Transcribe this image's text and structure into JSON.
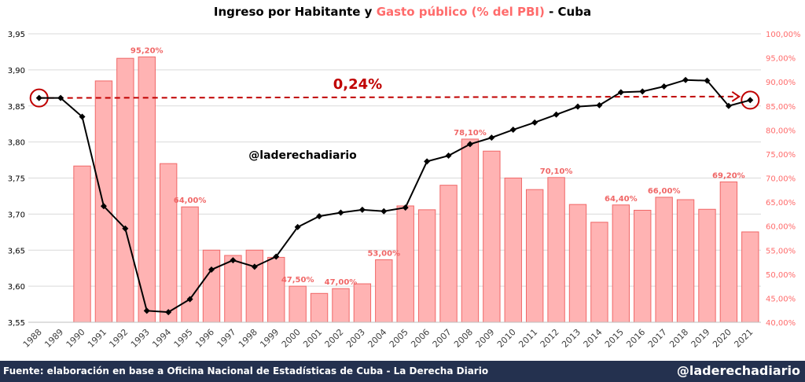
{
  "title": {
    "part1": "Ingreso por Habitante y ",
    "part2": "Gasto público (% del PBI)",
    "part3": " - Cuba"
  },
  "watermark": "@laderechadiario",
  "annotation": "0,24%",
  "footer": {
    "source": "Fuente: elaboración en base a Oficina Nacional de Estadísticas de Cuba - La Derecha Diario",
    "handle": "@laderechadiario"
  },
  "colors": {
    "bar_fill": "#ffb3b3",
    "bar_stroke": "#f06767",
    "line": "#000000",
    "trend": "#c00000",
    "right_axis": "#ff6b6b",
    "footer_bg": "#24314f"
  },
  "chart_data": {
    "type": "bar",
    "title": "Ingreso por Habitante y Gasto público (% del PBI) - Cuba",
    "categories": [
      "1988",
      "1989",
      "1990",
      "1991",
      "1992",
      "1993",
      "1994",
      "1995",
      "1996",
      "1997",
      "1998",
      "1999",
      "2000",
      "2001",
      "2002",
      "2003",
      "2004",
      "2005",
      "2006",
      "2007",
      "2008",
      "2009",
      "2010",
      "2011",
      "2012",
      "2013",
      "2014",
      "2015",
      "2016",
      "2017",
      "2018",
      "2019",
      "2020",
      "2021"
    ],
    "y_left": {
      "min": 3.55,
      "max": 3.95,
      "step": 0.05,
      "ticks": [
        "3,55",
        "3,60",
        "3,65",
        "3,70",
        "3,75",
        "3,80",
        "3,85",
        "3,90",
        "3,95"
      ]
    },
    "y_right": {
      "min": 40,
      "max": 100,
      "step": 5,
      "ticks": [
        "40,00%",
        "45,00%",
        "50,00%",
        "55,00%",
        "60,00%",
        "65,00%",
        "70,00%",
        "75,00%",
        "80,00%",
        "85,00%",
        "90,00%",
        "95,00%",
        "100,00%"
      ]
    },
    "series": [
      {
        "name": "Gasto público (% del PBI)",
        "kind": "bar",
        "axis": "right",
        "values": [
          null,
          null,
          72.5,
          90.2,
          94.9,
          95.2,
          73.0,
          64.0,
          55.0,
          53.9,
          55.0,
          53.5,
          47.5,
          46.0,
          47.0,
          48.0,
          53.0,
          64.2,
          63.4,
          68.5,
          78.1,
          75.6,
          70.0,
          67.6,
          70.1,
          64.5,
          60.8,
          64.4,
          63.3,
          66.0,
          65.5,
          63.5,
          69.2,
          58.8
        ]
      },
      {
        "name": "Ingreso por Habitante",
        "kind": "line",
        "axis": "left",
        "values": [
          3.861,
          3.861,
          3.835,
          3.711,
          3.68,
          3.566,
          3.564,
          3.582,
          3.623,
          3.636,
          3.627,
          3.641,
          3.682,
          3.697,
          3.702,
          3.706,
          3.704,
          3.709,
          3.773,
          3.781,
          3.797,
          3.806,
          3.817,
          3.827,
          3.838,
          3.849,
          3.851,
          3.869,
          3.87,
          3.877,
          3.886,
          3.885,
          3.85,
          3.858
        ]
      }
    ],
    "data_labels": [
      {
        "index": 5,
        "text": "95,20%"
      },
      {
        "index": 7,
        "text": "64,00%"
      },
      {
        "index": 12,
        "text": "47,50%"
      },
      {
        "index": 14,
        "text": "47,00%"
      },
      {
        "index": 16,
        "text": "53,00%"
      },
      {
        "index": 20,
        "text": "78,10%"
      },
      {
        "index": 24,
        "text": "70,10%"
      },
      {
        "index": 27,
        "text": "64,40%"
      },
      {
        "index": 29,
        "text": "66,00%"
      },
      {
        "index": 32,
        "text": "69,20%"
      }
    ],
    "trend": {
      "from_index": 0,
      "to_index": 33,
      "from_value": 3.861,
      "to_value": 3.863
    },
    "grid": true
  }
}
